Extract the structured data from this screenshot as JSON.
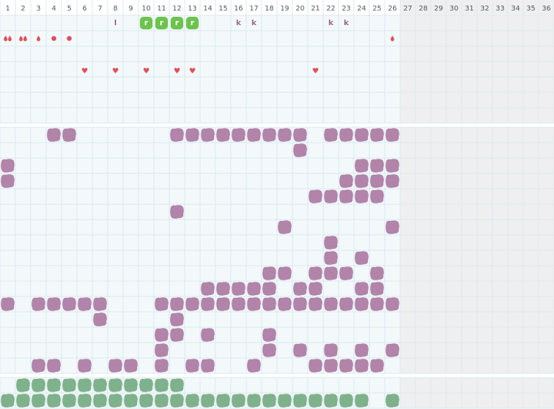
{
  "columns": [
    1,
    2,
    3,
    4,
    5,
    6,
    7,
    8,
    9,
    10,
    11,
    12,
    13,
    14,
    15,
    16,
    17,
    18,
    19,
    20,
    21,
    22,
    23,
    24,
    25,
    26,
    27,
    28,
    29,
    30,
    31,
    32,
    33,
    34,
    35,
    36
  ],
  "top": {
    "letters": [
      {
        "col": 8,
        "text": "l"
      },
      {
        "col": 16,
        "text": "k"
      },
      {
        "col": 17,
        "text": "k"
      },
      {
        "col": 22,
        "text": "k"
      },
      {
        "col": 23,
        "text": "k"
      }
    ],
    "tags": [
      {
        "col": 10,
        "text": "r"
      },
      {
        "col": 11,
        "text": "r"
      },
      {
        "col": 12,
        "text": "r"
      },
      {
        "col": 13,
        "text": "r"
      }
    ],
    "drops": [
      {
        "col": 1,
        "count": 2
      },
      {
        "col": 2,
        "count": 2
      },
      {
        "col": 3,
        "count": 1
      },
      {
        "col": 26,
        "count": 1
      }
    ],
    "dots": [
      4,
      5
    ],
    "hearts": [
      {
        "col": 6,
        "text": "♥"
      },
      {
        "col": 8,
        "text": "♥"
      },
      {
        "col": 10,
        "text": "♥"
      },
      {
        "col": 12,
        "text": "♥"
      },
      {
        "col": 13,
        "text": "♥"
      },
      {
        "col": 21,
        "text": "♥"
      }
    ]
  },
  "middle": [
    [
      4,
      5,
      12,
      13,
      14,
      15,
      16,
      17,
      18,
      19,
      20,
      22,
      23,
      24,
      25,
      26
    ],
    [
      20
    ],
    [
      1,
      24,
      25,
      26
    ],
    [
      1,
      23,
      24,
      25,
      26
    ],
    [
      21,
      22,
      23,
      24,
      25
    ],
    [
      12
    ],
    [
      19,
      26
    ],
    [
      22
    ],
    [
      22,
      24
    ],
    [
      18,
      19,
      21,
      22,
      23,
      25
    ],
    [
      14,
      15,
      16,
      17,
      18,
      20,
      21,
      24,
      25
    ],
    [
      1,
      3,
      4,
      5,
      6,
      7,
      11,
      12,
      13,
      14,
      15,
      16,
      17,
      18,
      19,
      20,
      21,
      22,
      23,
      24,
      25,
      26
    ],
    [
      7,
      12
    ],
    [
      11,
      12,
      14,
      18
    ],
    [
      11,
      18,
      20,
      22,
      24,
      26
    ],
    [
      3,
      4,
      6,
      8,
      9,
      11,
      13,
      14,
      17,
      21,
      22,
      23,
      24,
      25
    ]
  ],
  "bottom": [
    [
      2,
      3,
      4,
      5,
      6,
      7,
      8,
      9,
      10,
      11,
      12
    ],
    [
      1,
      2,
      3,
      4,
      5,
      6,
      7,
      8,
      9,
      10,
      11,
      12,
      13,
      14,
      15,
      16,
      17,
      18,
      19,
      20,
      21,
      22,
      23,
      24,
      26
    ]
  ]
}
